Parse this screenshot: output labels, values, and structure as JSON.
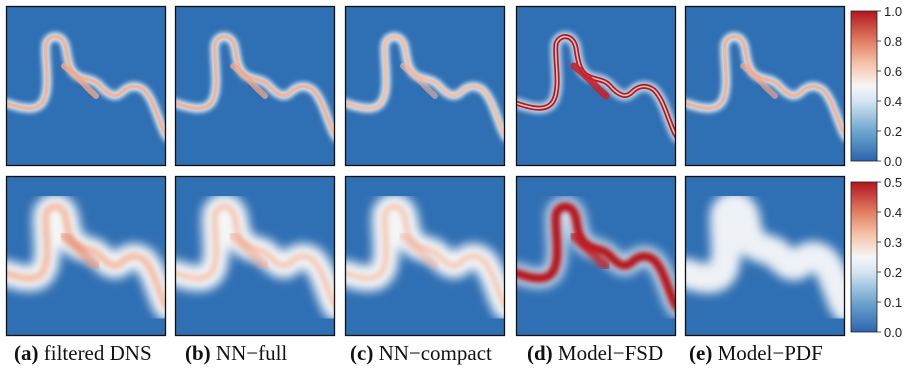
{
  "panels": [
    {
      "letter": "(a)",
      "label": "filtered DNS"
    },
    {
      "letter": "(b)",
      "label": "NN−full"
    },
    {
      "letter": "(c)",
      "label": "NN−compact"
    },
    {
      "letter": "(d)",
      "label": "Model−FSD"
    },
    {
      "letter": "(e)",
      "label": "Model−PDF"
    }
  ],
  "colorbars": [
    {
      "ticks": [
        "1.0",
        "0.8",
        "0.6",
        "0.4",
        "0.2",
        "0.0"
      ]
    },
    {
      "ticks": [
        "0.5",
        "0.4",
        "0.3",
        "0.2",
        "0.1",
        "0.0"
      ]
    }
  ],
  "colors": {
    "background": "#2f6fb3",
    "low": "#2b65ad",
    "mid": "#f6f6f6",
    "high": "#b3161f"
  }
}
